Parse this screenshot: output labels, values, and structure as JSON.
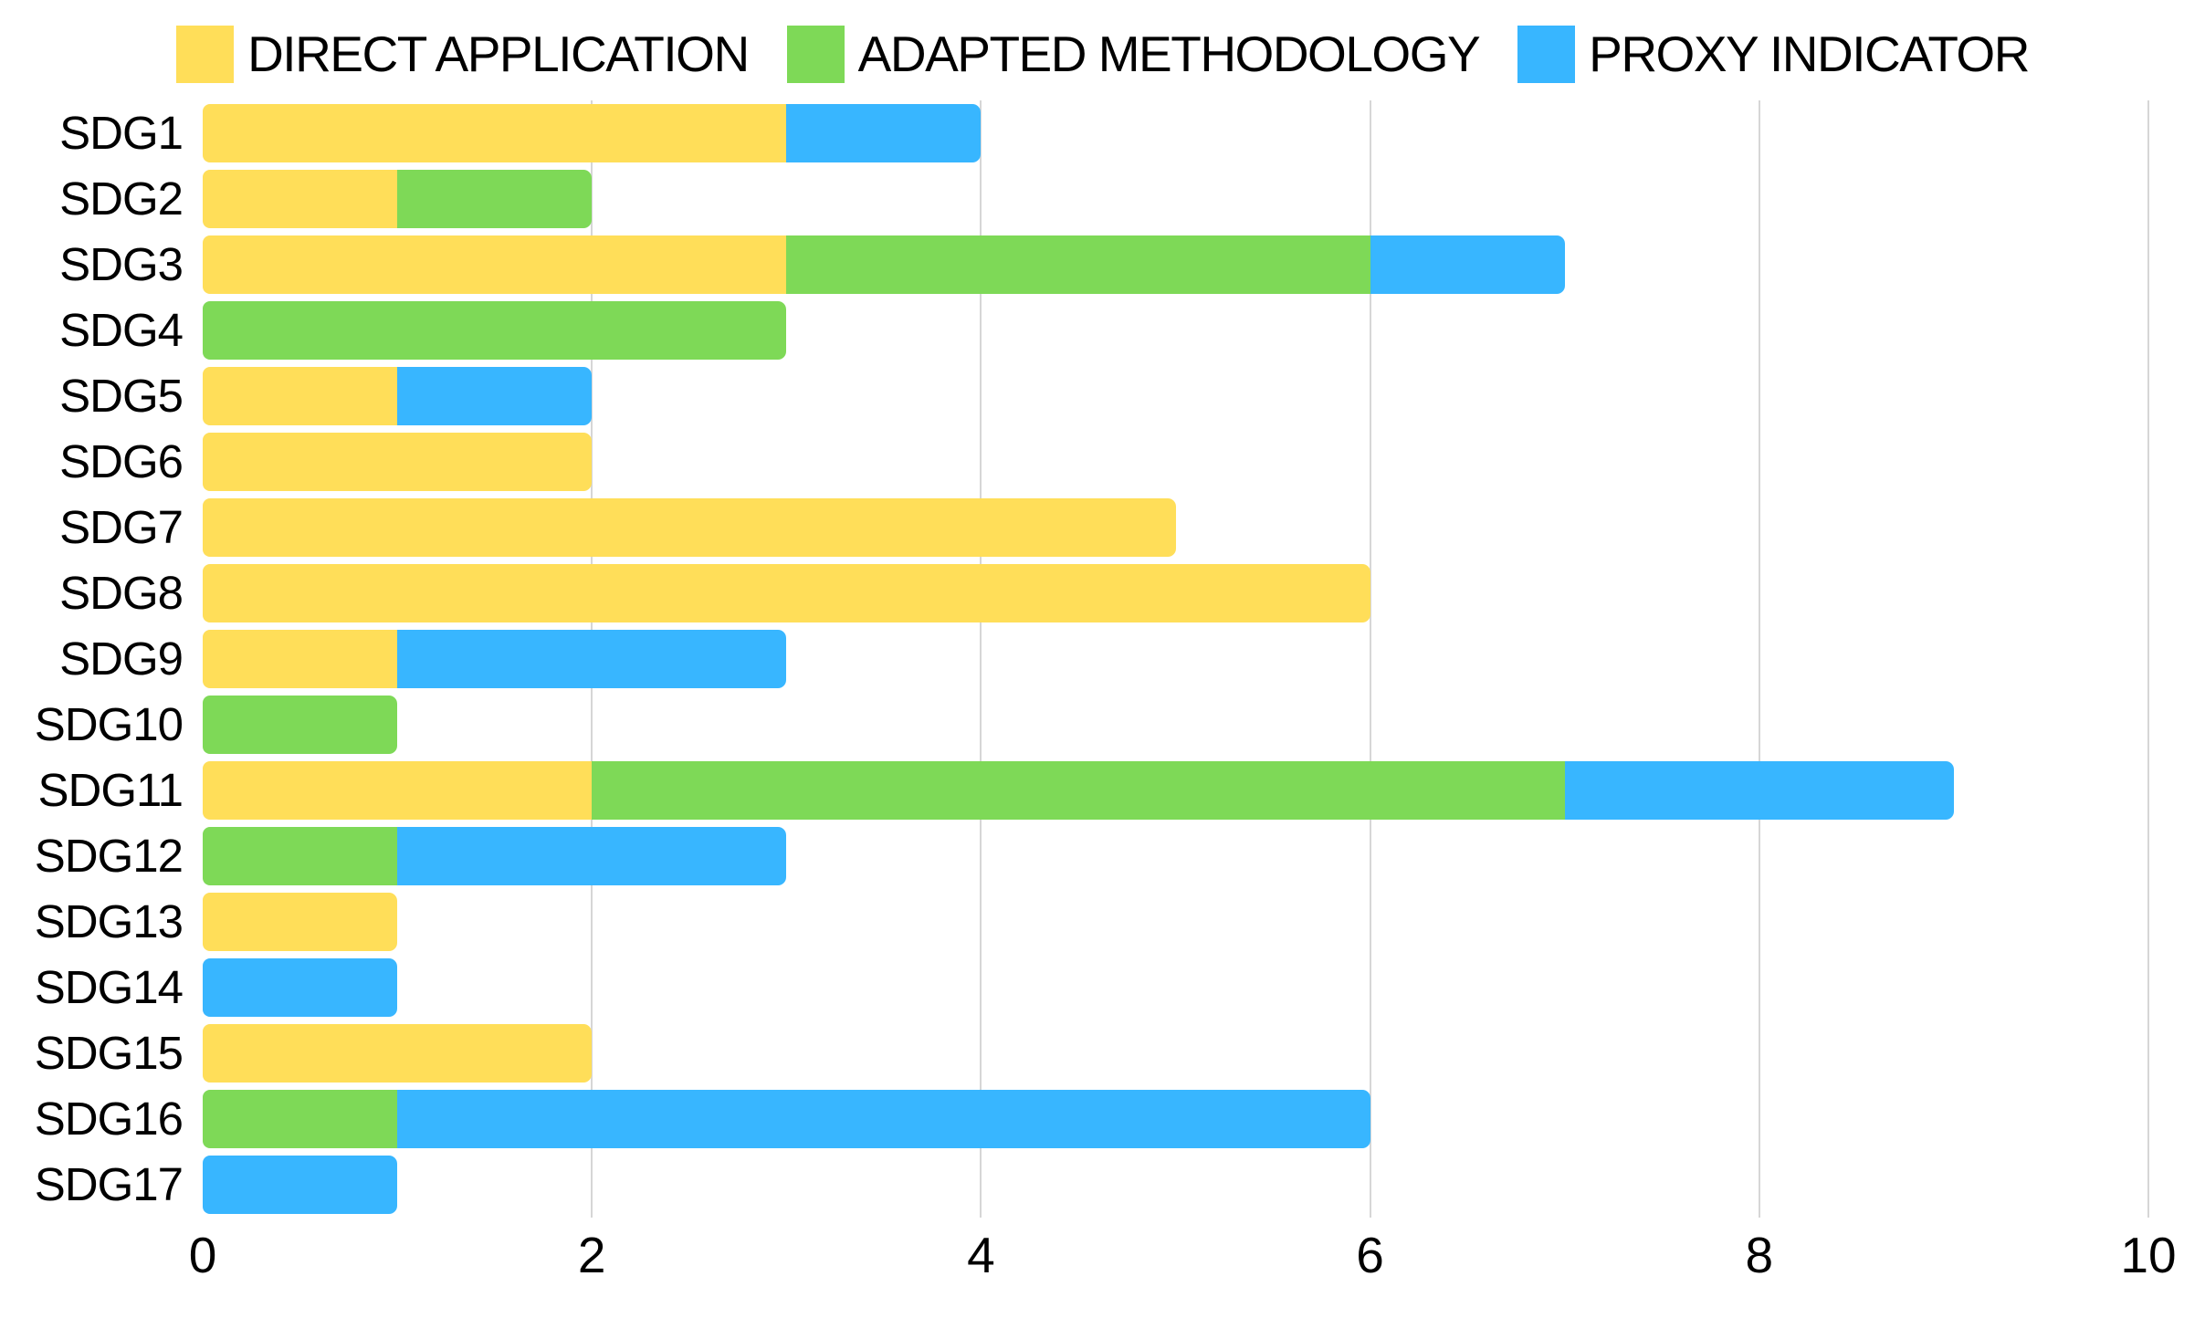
{
  "chart_data": {
    "type": "bar",
    "orientation": "horizontal",
    "stacked": true,
    "title": "",
    "xlabel": "",
    "ylabel": "",
    "legend_position": "top",
    "grid": "vertical",
    "xlim": [
      0,
      10
    ],
    "x_ticks": [
      0,
      2,
      4,
      6,
      8,
      10
    ],
    "categories": [
      "SDG1",
      "SDG2",
      "SDG3",
      "SDG4",
      "SDG5",
      "SDG6",
      "SDG7",
      "SDG8",
      "SDG9",
      "SDG10",
      "SDG11",
      "SDG12",
      "SDG13",
      "SDG14",
      "SDG15",
      "SDG16",
      "SDG17"
    ],
    "series": [
      {
        "name": "DIRECT APPLICATION",
        "color": "#FFDE59",
        "values": [
          3,
          1,
          3,
          0,
          1,
          2,
          5,
          6,
          1,
          0,
          2,
          0,
          1,
          0,
          2,
          0,
          0
        ]
      },
      {
        "name": "ADAPTED METHODOLOGY",
        "color": "#7ED957",
        "values": [
          0,
          1,
          3,
          3,
          0,
          0,
          0,
          0,
          0,
          1,
          5,
          1,
          0,
          0,
          0,
          1,
          0
        ]
      },
      {
        "name": "PROXY INDICATOR",
        "color": "#38B6FF",
        "values": [
          1,
          0,
          1,
          0,
          1,
          0,
          0,
          0,
          2,
          0,
          2,
          2,
          0,
          1,
          0,
          5,
          1
        ]
      }
    ]
  },
  "colors": {
    "background": "#FFFFFF",
    "gridline": "#D6D6D6",
    "text": "#000000"
  }
}
